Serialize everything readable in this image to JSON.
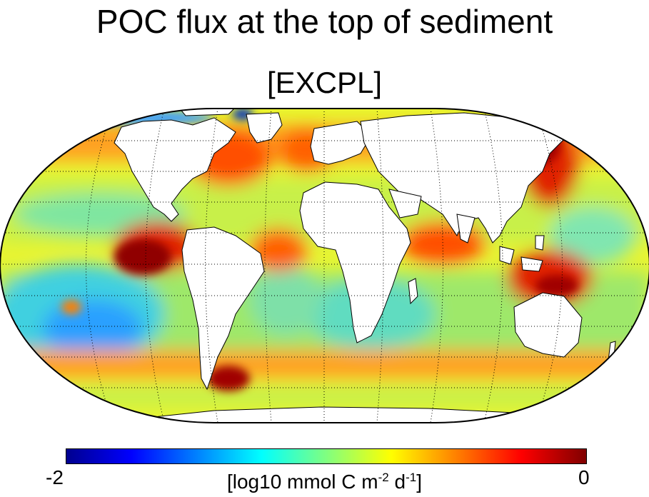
{
  "title": "POC flux at the top of sediment",
  "subtitle": "[EXCPL]",
  "colorbar": {
    "min_label": "-2",
    "max_label": "0",
    "units_prefix": "[log10 mmol C m",
    "units_exp1": "-2",
    "units_mid": " d",
    "units_exp2": "-1",
    "units_suffix": "]",
    "range": [
      -2,
      0
    ],
    "colormap": "jet"
  },
  "colors": {
    "low": "#00008f",
    "mid": "#80ff80",
    "high": "#800000",
    "land": "#ffffff"
  },
  "map": {
    "projection": "Robinson-like global",
    "graticule": "dotted",
    "land_fill": "white"
  }
}
